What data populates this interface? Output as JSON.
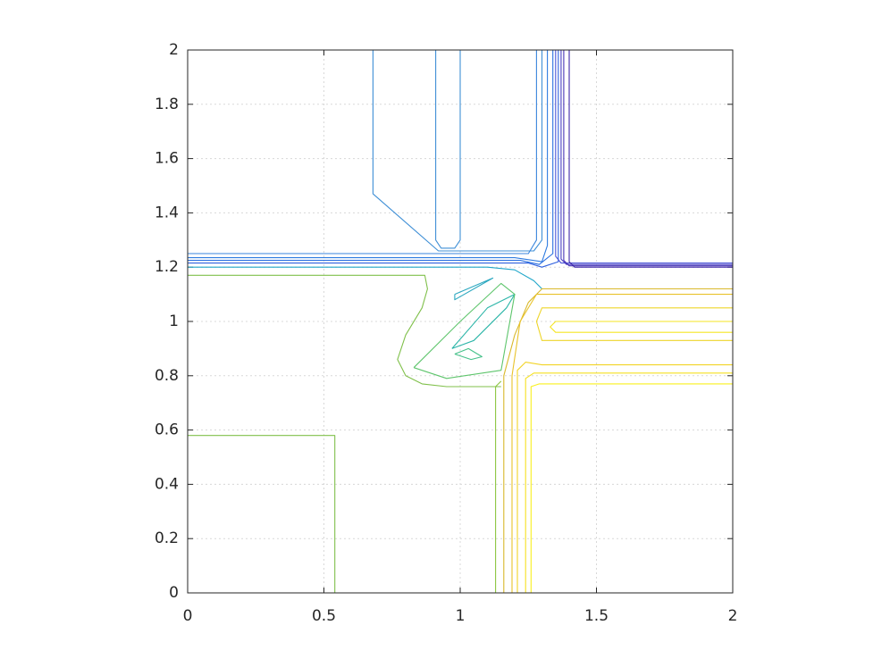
{
  "chart_data": {
    "type": "contour",
    "xlim": [
      0,
      2
    ],
    "ylim": [
      0,
      2
    ],
    "xticks": [
      0,
      0.5,
      1,
      1.5,
      2
    ],
    "yticks": [
      0,
      0.2,
      0.4,
      0.6,
      0.8,
      1,
      1.2,
      1.4,
      1.6,
      1.8,
      2
    ],
    "grid": true,
    "series": [
      {
        "color": "#3f8fd6",
        "x": [
          0.68,
          0.68,
          0.92,
          1.27,
          1.3,
          1.3
        ],
        "y": [
          2,
          1.47,
          1.26,
          1.26,
          1.3,
          2
        ]
      },
      {
        "color": "#3f8fd6",
        "x": [
          0.91,
          0.91,
          0.93,
          0.98,
          1.0,
          1.0
        ],
        "y": [
          2,
          1.3,
          1.27,
          1.27,
          1.3,
          2
        ]
      },
      {
        "color": "#3a86dc",
        "x": [
          0,
          1.25,
          1.28,
          1.28
        ],
        "y": [
          1.25,
          1.25,
          1.3,
          2
        ]
      },
      {
        "color": "#2f7ce0",
        "x": [
          0,
          1.2,
          1.3,
          1.32,
          1.32
        ],
        "y": [
          1.235,
          1.235,
          1.22,
          1.28,
          2
        ]
      },
      {
        "color": "#2a6fe0",
        "x": [
          0,
          1.22,
          1.29,
          1.34,
          1.34
        ],
        "y": [
          1.225,
          1.225,
          1.21,
          1.25,
          2
        ]
      },
      {
        "color": "#2f60de",
        "x": [
          0,
          1.25,
          1.3,
          1.36,
          1.36
        ],
        "y": [
          1.215,
          1.215,
          1.2,
          1.22,
          2
        ]
      },
      {
        "color": "#4b55d8",
        "x": [
          1.35,
          1.35,
          1.37,
          2
        ],
        "y": [
          2,
          1.24,
          1.215,
          1.215
        ]
      },
      {
        "color": "#4a40c4",
        "x": [
          1.37,
          1.37,
          1.39,
          2
        ],
        "y": [
          2,
          1.23,
          1.21,
          1.21
        ]
      },
      {
        "color": "#4835b5",
        "x": [
          1.38,
          1.38,
          1.4,
          2
        ],
        "y": [
          2,
          1.225,
          1.205,
          1.205
        ]
      },
      {
        "color": "#3e26a8",
        "x": [
          1.4,
          1.4,
          1.42,
          2
        ],
        "y": [
          2,
          1.22,
          1.2,
          1.2
        ]
      },
      {
        "color": "#1fa6c9",
        "x": [
          0,
          1.1,
          1.2,
          1.27,
          1.3
        ],
        "y": [
          1.2,
          1.2,
          1.19,
          1.15,
          1.12
        ]
      },
      {
        "color": "#80c04b",
        "x": [
          0,
          0.87,
          0.88,
          0.86,
          0.8,
          0.77,
          0.8,
          0.86,
          0.95,
          1.15
        ],
        "y": [
          1.17,
          1.17,
          1.12,
          1.05,
          0.95,
          0.86,
          0.8,
          0.77,
          0.76,
          0.76
        ]
      },
      {
        "color": "#80c04b",
        "x": [
          0,
          0.54,
          0.54
        ],
        "y": [
          0.58,
          0.58,
          0
        ]
      },
      {
        "color": "#8cc540",
        "x": [
          1.13,
          1.13,
          1.15
        ],
        "y": [
          0,
          0.76,
          0.78
        ]
      },
      {
        "color": "#2bb5a8",
        "x": [
          0.97,
          1.1,
          1.2,
          1.17,
          1.05,
          0.97
        ],
        "y": [
          0.9,
          1.05,
          1.1,
          1.05,
          0.93,
          0.9
        ]
      },
      {
        "color": "#46c18a",
        "x": [
          0.98,
          1.03,
          1.08,
          1.04,
          0.98
        ],
        "y": [
          0.88,
          0.9,
          0.87,
          0.86,
          0.88
        ]
      },
      {
        "color": "#2ca8c0",
        "x": [
          0.98,
          1.12,
          0.98,
          0.98
        ],
        "y": [
          1.1,
          1.16,
          1.08,
          1.1
        ]
      },
      {
        "color": "#5ec56c",
        "x": [
          0.83,
          1.0,
          1.15,
          1.2,
          1.15,
          0.95,
          0.83
        ],
        "y": [
          0.83,
          1.0,
          1.14,
          1.1,
          0.82,
          0.79,
          0.83
        ]
      },
      {
        "color": "#d9b92c",
        "x": [
          1.16,
          1.16,
          1.2,
          1.25,
          1.3,
          2
        ],
        "y": [
          0,
          0.8,
          0.95,
          1.07,
          1.12,
          1.12
        ]
      },
      {
        "color": "#e8c22a",
        "x": [
          1.19,
          1.19,
          1.22,
          1.28,
          2
        ],
        "y": [
          0,
          0.8,
          1.0,
          1.1,
          1.1
        ]
      },
      {
        "color": "#f2d428",
        "x": [
          1.21,
          1.21,
          1.24,
          1.3,
          2
        ],
        "y": [
          0,
          0.82,
          0.85,
          0.84,
          0.84
        ]
      },
      {
        "color": "#f5e020",
        "x": [
          1.24,
          1.24,
          1.27,
          2
        ],
        "y": [
          0,
          0.79,
          0.81,
          0.81
        ]
      },
      {
        "color": "#f9f01c",
        "x": [
          1.26,
          1.26,
          1.29,
          2
        ],
        "y": [
          0,
          0.76,
          0.77,
          0.77
        ]
      },
      {
        "color": "#eed52a",
        "x": [
          2,
          1.3,
          1.28,
          1.3,
          2
        ],
        "y": [
          1.05,
          1.05,
          1.0,
          0.93,
          0.93
        ]
      },
      {
        "color": "#f5e522",
        "x": [
          2,
          1.35,
          1.33,
          1.35,
          2
        ],
        "y": [
          1.0,
          1.0,
          0.98,
          0.96,
          0.96
        ]
      }
    ]
  }
}
